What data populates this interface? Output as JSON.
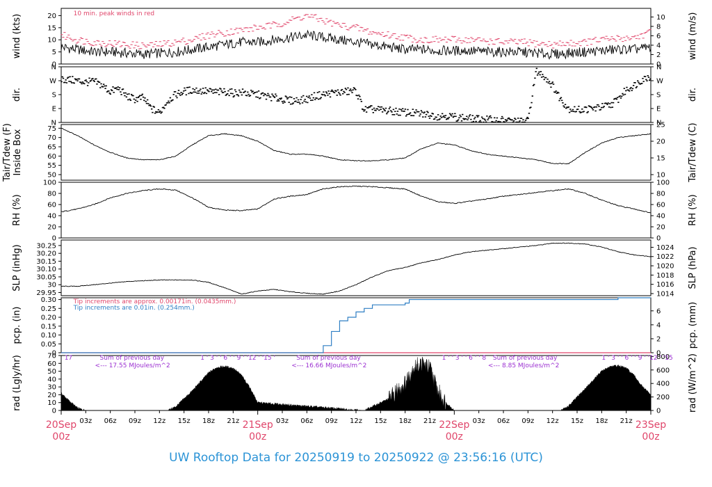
{
  "title": "UW Rooftop Data for 20250919  to  20250922 @ 23:56:16  (UTC)",
  "colors": {
    "pink": "#e0456a",
    "blue": "#2f7fc4",
    "purple": "#9b2fd1",
    "black": "#000000"
  },
  "time_axis": {
    "hours_total": 72,
    "ticks": [
      {
        "h": 3,
        "label": "03z"
      },
      {
        "h": 6,
        "label": "06z"
      },
      {
        "h": 9,
        "label": "09z"
      },
      {
        "h": 12,
        "label": "12z"
      },
      {
        "h": 15,
        "label": "15z"
      },
      {
        "h": 18,
        "label": "18z"
      },
      {
        "h": 21,
        "label": "21z"
      },
      {
        "h": 27,
        "label": "03z"
      },
      {
        "h": 30,
        "label": "06z"
      },
      {
        "h": 33,
        "label": "09z"
      },
      {
        "h": 36,
        "label": "12z"
      },
      {
        "h": 39,
        "label": "15z"
      },
      {
        "h": 42,
        "label": "18z"
      },
      {
        "h": 45,
        "label": "21z"
      },
      {
        "h": 51,
        "label": "03z"
      },
      {
        "h": 54,
        "label": "06z"
      },
      {
        "h": 57,
        "label": "09z"
      },
      {
        "h": 60,
        "label": "12z"
      },
      {
        "h": 63,
        "label": "15z"
      },
      {
        "h": 66,
        "label": "18z"
      },
      {
        "h": 69,
        "label": "21z"
      }
    ],
    "days": [
      {
        "h": 0,
        "date": "20Sep",
        "hour": "00z"
      },
      {
        "h": 24,
        "date": "21Sep",
        "hour": "00z"
      },
      {
        "h": 48,
        "date": "22Sep",
        "hour": "00z"
      },
      {
        "h": 72,
        "date": "23Sep",
        "hour": "00z"
      }
    ]
  },
  "chart_data": [
    {
      "type": "line",
      "id": "wind",
      "ylabel_left": "wind (kts)",
      "ylabel_right": "wind (m/s)",
      "ylim": [
        0,
        23
      ],
      "left_ticks": [
        0,
        5,
        10,
        15,
        20
      ],
      "right_ticks": [
        0,
        2,
        4,
        6,
        8,
        10
      ],
      "right_factor": 0.514444,
      "annotation": "10 min. peak winds in red",
      "series": [
        {
          "role": "mean",
          "x": [
            0,
            2,
            4,
            6,
            8,
            10,
            12,
            14,
            16,
            18,
            20,
            22,
            24,
            26,
            28,
            30,
            32,
            34,
            36,
            38,
            40,
            42,
            44,
            46,
            48,
            50,
            52,
            54,
            56,
            58,
            60,
            62,
            64,
            66,
            68,
            70,
            72
          ],
          "y": [
            7,
            6,
            5,
            5,
            4.5,
            4,
            4.5,
            5,
            6,
            7,
            8,
            9,
            9,
            10,
            11,
            12,
            11,
            10,
            9,
            8,
            7,
            6,
            6,
            5.5,
            5.5,
            5.5,
            5,
            5,
            5,
            4.5,
            4,
            4.5,
            5,
            5.5,
            6,
            6,
            7
          ]
        },
        {
          "role": "peak",
          "x": [
            0,
            2,
            4,
            6,
            8,
            10,
            12,
            14,
            16,
            18,
            20,
            22,
            24,
            26,
            28,
            30,
            32,
            34,
            36,
            38,
            40,
            42,
            44,
            46,
            48,
            50,
            52,
            54,
            56,
            58,
            60,
            62,
            64,
            66,
            68,
            70,
            72
          ],
          "y": [
            12,
            10,
            9,
            8.5,
            8,
            7.5,
            8,
            9,
            10,
            12,
            13,
            14,
            15,
            16,
            18,
            20,
            18,
            16,
            15,
            13,
            12,
            11,
            10,
            10,
            10,
            10,
            9.5,
            9,
            9,
            8.5,
            8,
            8.5,
            9,
            10,
            10.5,
            11,
            13
          ]
        }
      ]
    },
    {
      "type": "scatter",
      "id": "dir",
      "ylabel_left": "dir.",
      "ylabel_right": "dir.",
      "ylim": [
        0,
        360
      ],
      "left_ticks": [
        {
          "v": 0,
          "label": "N"
        },
        {
          "v": 90,
          "label": "E"
        },
        {
          "v": 180,
          "label": "S"
        },
        {
          "v": 270,
          "label": "W"
        },
        {
          "v": 360,
          "label": "N"
        }
      ],
      "x": [
        0,
        1,
        2,
        3,
        4,
        5,
        6,
        7,
        8,
        9,
        10,
        11,
        12,
        13,
        14,
        15,
        16,
        17,
        18,
        19,
        20,
        21,
        22,
        23,
        24,
        25,
        26,
        27,
        28,
        29,
        30,
        31,
        32,
        33,
        34,
        35,
        36,
        37,
        38,
        39,
        40,
        41,
        42,
        43,
        44,
        45,
        46,
        47,
        48,
        49,
        50,
        51,
        52,
        53,
        54,
        55,
        56,
        57,
        58,
        59,
        60,
        61,
        62,
        63,
        64,
        65,
        66,
        67,
        68,
        69,
        70,
        71,
        72
      ],
      "y": [
        280,
        275,
        270,
        260,
        265,
        240,
        200,
        220,
        170,
        150,
        160,
        90,
        60,
        140,
        180,
        200,
        210,
        205,
        200,
        195,
        200,
        190,
        195,
        185,
        180,
        170,
        160,
        150,
        140,
        145,
        150,
        170,
        180,
        190,
        195,
        200,
        205,
        80,
        85,
        80,
        75,
        70,
        65,
        60,
        55,
        50,
        40,
        45,
        35,
        30,
        25,
        20,
        20,
        15,
        15,
        10,
        5,
        10,
        330,
        300,
        240,
        150,
        90,
        80,
        85,
        90,
        100,
        110,
        150,
        210,
        240,
        280,
        300
      ]
    },
    {
      "type": "line",
      "id": "temp",
      "ylabel_left": "Tair/Tdew (F)\nInside Box",
      "ylabel_right": "Tair/Tdew (C)",
      "ylim": [
        47,
        77
      ],
      "left_ticks": [
        50,
        55,
        60,
        65,
        70,
        75
      ],
      "right_ticks": [
        10,
        15,
        20,
        25
      ],
      "x": [
        0,
        2,
        4,
        6,
        8,
        10,
        12,
        14,
        16,
        18,
        20,
        22,
        24,
        26,
        28,
        30,
        32,
        34,
        36,
        38,
        40,
        42,
        44,
        46,
        48,
        50,
        52,
        54,
        56,
        58,
        60,
        62,
        64,
        66,
        68,
        70,
        72
      ],
      "y": [
        75,
        71,
        66,
        62,
        59,
        58,
        58,
        60,
        66,
        71,
        72,
        71,
        68,
        63,
        61,
        61,
        60,
        58,
        57.5,
        57.5,
        58,
        59,
        64,
        67,
        66,
        63,
        61,
        60,
        59,
        58,
        56,
        56,
        62,
        67,
        70,
        71,
        72
      ]
    },
    {
      "type": "line",
      "id": "rh",
      "ylabel_left": "RH (%)",
      "ylabel_right": "RH (%)",
      "ylim": [
        0,
        100
      ],
      "left_ticks": [
        0,
        20,
        40,
        60,
        80,
        100
      ],
      "right_ticks": [
        0,
        20,
        40,
        60,
        80,
        100
      ],
      "x": [
        0,
        2,
        4,
        6,
        8,
        10,
        12,
        14,
        16,
        18,
        20,
        22,
        24,
        26,
        28,
        30,
        32,
        34,
        36,
        38,
        40,
        42,
        44,
        46,
        48,
        50,
        52,
        54,
        56,
        58,
        60,
        62,
        64,
        66,
        68,
        70,
        72
      ],
      "y": [
        47,
        52,
        60,
        72,
        80,
        85,
        88,
        86,
        72,
        55,
        50,
        49,
        52,
        70,
        75,
        78,
        88,
        92,
        93,
        92,
        90,
        88,
        75,
        65,
        62,
        66,
        70,
        75,
        78,
        82,
        85,
        88,
        80,
        68,
        58,
        52,
        45
      ]
    },
    {
      "type": "line",
      "id": "slp",
      "ylabel_left": "SLP (inHg)",
      "ylabel_right": "SLP (hPa)",
      "ylim": [
        29.93,
        30.285
      ],
      "left_ticks": [
        29.95,
        30.0,
        30.05,
        30.1,
        30.15,
        30.2,
        30.25
      ],
      "right_ticks": [
        1014,
        1016,
        1018,
        1020,
        1022,
        1024
      ],
      "right_factor": 33.8639,
      "x": [
        0,
        2,
        4,
        6,
        8,
        10,
        12,
        14,
        16,
        18,
        20,
        22,
        24,
        26,
        28,
        30,
        32,
        34,
        36,
        38,
        40,
        42,
        44,
        46,
        48,
        50,
        52,
        54,
        56,
        58,
        60,
        62,
        64,
        66,
        68,
        70,
        72
      ],
      "y": [
        29.99,
        29.99,
        30.0,
        30.01,
        30.02,
        30.025,
        30.03,
        30.03,
        30.03,
        30.015,
        29.98,
        29.94,
        29.96,
        29.97,
        29.955,
        29.945,
        29.94,
        29.96,
        30.0,
        30.05,
        30.09,
        30.11,
        30.14,
        30.16,
        30.19,
        30.21,
        30.22,
        30.23,
        30.24,
        30.25,
        30.265,
        30.265,
        30.26,
        30.24,
        30.21,
        30.19,
        30.18
      ]
    },
    {
      "type": "line",
      "id": "pcp",
      "ylabel_left": "pcp. (in)",
      "ylabel_right": "pcp. (mm)",
      "ylim": [
        0,
        0.31
      ],
      "left_ticks": [
        0.0,
        0.05,
        0.1,
        0.15,
        0.2,
        0.25,
        0.3
      ],
      "right_ticks": [
        0,
        2,
        4,
        6,
        8
      ],
      "right_factor": 25.4,
      "annotations": [
        "Tip increments are approx. 0.00171in. (0.0435mm.)",
        "Tip increments are 0.01in. (0.254mm.)"
      ],
      "series": [
        {
          "role": "pink",
          "x": [
            0,
            72
          ],
          "y": [
            0,
            0
          ]
        },
        {
          "role": "blue",
          "x": [
            0,
            31.5,
            32,
            33,
            34,
            35,
            36,
            37,
            38,
            40,
            42,
            42.5,
            43,
            45,
            50,
            56,
            60,
            62,
            63,
            64,
            66,
            68,
            70,
            72
          ],
          "y": [
            0,
            0,
            0.04,
            0.12,
            0.18,
            0.2,
            0.23,
            0.25,
            0.27,
            0.27,
            0.28,
            0.3,
            0.3,
            0.3,
            0.3,
            0.3,
            0.3,
            0.3,
            0.3,
            0.3,
            0.3,
            0.31,
            0.31,
            0.31
          ]
        }
      ]
    },
    {
      "type": "area",
      "id": "rad",
      "ylabel_left": "rad (Lgly/hr)",
      "ylabel_right": "rad (W/m^2)",
      "ylim": [
        0,
        70
      ],
      "left_ticks": [
        0,
        10,
        20,
        30,
        40,
        50,
        60,
        70
      ],
      "right_ticks": [
        0,
        200,
        400,
        600,
        800
      ],
      "right_factor": 11.63,
      "x": [
        0,
        1,
        2,
        3,
        13,
        14,
        16,
        18,
        19,
        20,
        21,
        22,
        23,
        24,
        37,
        38,
        40,
        42,
        43,
        44,
        45,
        46,
        47,
        48,
        61,
        62,
        64,
        66,
        67,
        68,
        69,
        70,
        71,
        72
      ],
      "y": [
        22,
        12,
        3,
        0,
        0,
        5,
        25,
        48,
        55,
        56,
        54,
        45,
        30,
        10,
        0,
        5,
        15,
        35,
        55,
        60,
        55,
        25,
        10,
        0,
        0,
        6,
        28,
        50,
        56,
        57,
        54,
        44,
        30,
        20
      ],
      "annotations": [
        {
          "h": 0.4,
          "text": "17"
        },
        {
          "h": 17,
          "text": "1 ' 3 ' ' 6 ' ' 9 ' '12 ' '15 '"
        },
        {
          "h": 46.5,
          "text": "1 ' ' 3 ' ' 6 ' ' 8"
        },
        {
          "h": 66,
          "text": "1 ' 3 ' ' 6 ' ' 9 ' '12 ' '15"
        },
        {
          "h": 2,
          "text": "Sum of previous day"
        },
        {
          "h": 2,
          "text": "<--- 17.55 MJoules/m^2"
        },
        {
          "h": 26,
          "text": "Sum of previous day"
        },
        {
          "h": 26,
          "text": "<--- 16.66 MJoules/m^2"
        },
        {
          "h": 50,
          "text": "Sum of previous day"
        },
        {
          "h": 50,
          "text": "<--- 8.85 MJoules/m^2"
        }
      ]
    }
  ]
}
